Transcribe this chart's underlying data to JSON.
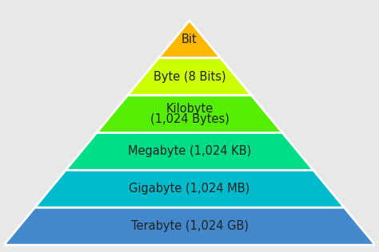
{
  "background_color": "#e8e8e8",
  "layers": [
    {
      "label": "Bit",
      "label2": "",
      "color_top": "#FFB800",
      "color_bot": "#FFA000"
    },
    {
      "label": "Byte (8 Bits)",
      "label2": "",
      "color_top": "#CCFF00",
      "color_bot": "#AAEE00"
    },
    {
      "label": "Kilobyte",
      "label2": "(1,024 Bytes)",
      "color_top": "#55EE00",
      "color_bot": "#00DD00"
    },
    {
      "label": "Megabyte (1,024 KB)",
      "label2": "",
      "color_top": "#00DD88",
      "color_bot": "#00CC66"
    },
    {
      "label": "Gigabyte (1,024 MB)",
      "label2": "",
      "color_top": "#00BBCC",
      "color_bot": "#0099BB"
    },
    {
      "label": "Terabyte (1,024 GB)",
      "label2": "",
      "color_top": "#4488CC",
      "color_bot": "#3366BB"
    }
  ],
  "separator_color": "#FFFFFF",
  "text_color": "#222222",
  "font_size": 10.5,
  "font_weight": "normal"
}
